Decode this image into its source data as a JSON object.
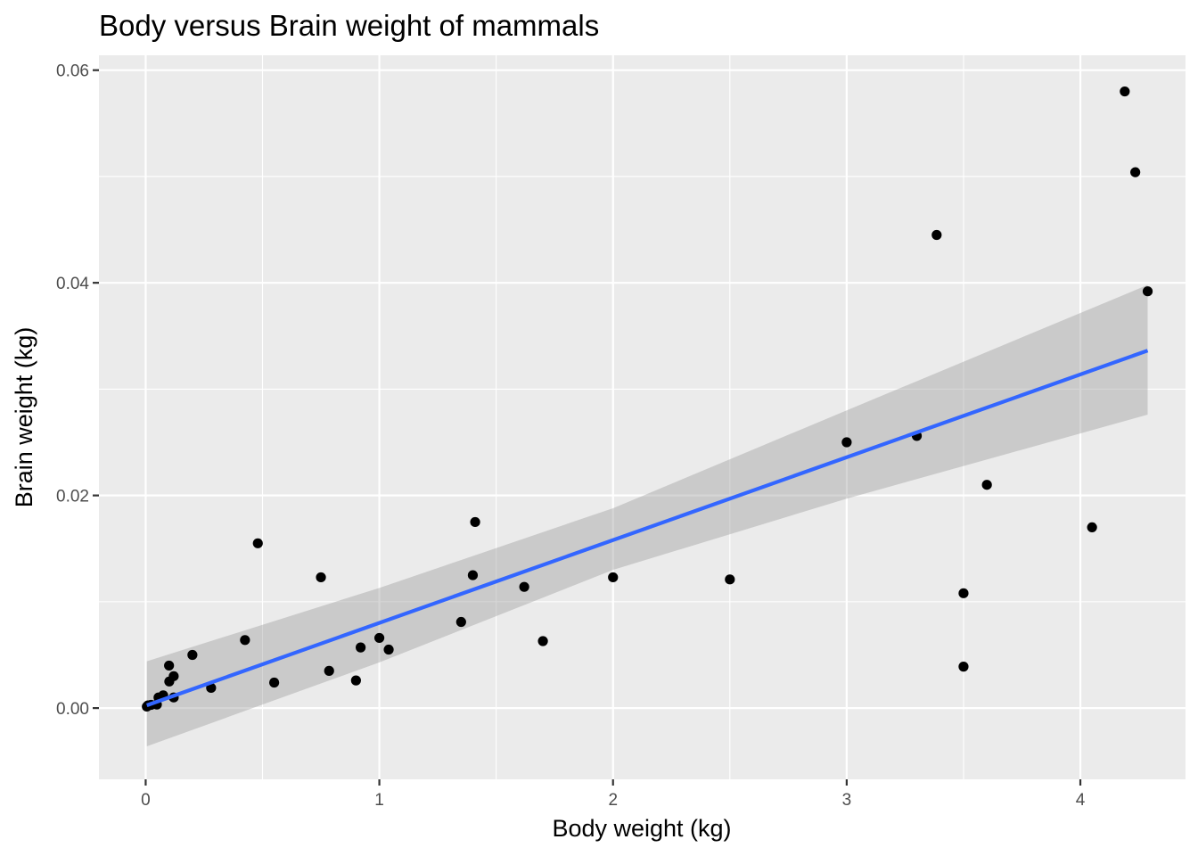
{
  "chart_data": {
    "type": "scatter",
    "title": "Body versus Brain weight of mammals",
    "xlabel": "Body weight (kg)",
    "ylabel": "Brain weight (kg)",
    "xlim": [
      -0.2,
      4.45
    ],
    "ylim": [
      -0.0067,
      0.0614
    ],
    "grid": true,
    "legend": "none",
    "x_ticks": [
      0,
      1,
      2,
      3,
      4
    ],
    "x_tick_labels": [
      "0",
      "1",
      "2",
      "3",
      "4"
    ],
    "y_ticks": [
      0.0,
      0.02,
      0.04,
      0.06
    ],
    "y_tick_labels": [
      "0.00",
      "0.02",
      "0.04",
      "0.06"
    ],
    "points": [
      {
        "x": 0.005,
        "y": 0.00014
      },
      {
        "x": 0.01,
        "y": 0.00025
      },
      {
        "x": 0.023,
        "y": 0.0003
      },
      {
        "x": 0.048,
        "y": 0.00033
      },
      {
        "x": 0.055,
        "y": 0.001
      },
      {
        "x": 0.075,
        "y": 0.0012
      },
      {
        "x": 0.1,
        "y": 0.004
      },
      {
        "x": 0.101,
        "y": 0.0025
      },
      {
        "x": 0.12,
        "y": 0.003
      },
      {
        "x": 0.12,
        "y": 0.001
      },
      {
        "x": 0.2,
        "y": 0.005
      },
      {
        "x": 0.28,
        "y": 0.0019
      },
      {
        "x": 0.425,
        "y": 0.0064
      },
      {
        "x": 0.48,
        "y": 0.0155
      },
      {
        "x": 0.55,
        "y": 0.0024
      },
      {
        "x": 0.75,
        "y": 0.0123
      },
      {
        "x": 0.785,
        "y": 0.0035
      },
      {
        "x": 0.9,
        "y": 0.0026
      },
      {
        "x": 0.92,
        "y": 0.0057
      },
      {
        "x": 1.0,
        "y": 0.0066
      },
      {
        "x": 1.04,
        "y": 0.0055
      },
      {
        "x": 1.35,
        "y": 0.0081
      },
      {
        "x": 1.4,
        "y": 0.0125
      },
      {
        "x": 1.41,
        "y": 0.0175
      },
      {
        "x": 1.62,
        "y": 0.0114
      },
      {
        "x": 1.7,
        "y": 0.0063
      },
      {
        "x": 2.0,
        "y": 0.0123
      },
      {
        "x": 2.5,
        "y": 0.0121
      },
      {
        "x": 3.0,
        "y": 0.025
      },
      {
        "x": 3.3,
        "y": 0.0256
      },
      {
        "x": 3.385,
        "y": 0.0445
      },
      {
        "x": 3.5,
        "y": 0.0108
      },
      {
        "x": 3.5,
        "y": 0.0039
      },
      {
        "x": 3.6,
        "y": 0.021
      },
      {
        "x": 4.05,
        "y": 0.017
      },
      {
        "x": 4.19,
        "y": 0.058
      },
      {
        "x": 4.235,
        "y": 0.0504
      },
      {
        "x": 4.288,
        "y": 0.0392
      }
    ],
    "trend_line": {
      "method": "linear fit",
      "x_range": [
        0.005,
        4.288
      ],
      "intercept": 0.00022,
      "slope": 0.00779,
      "ci_lower": [
        [
          0.005,
          -0.0036
        ],
        [
          1.0,
          0.0043
        ],
        [
          2.0,
          0.013
        ],
        [
          3.0,
          0.0197
        ],
        [
          4.288,
          0.0276
        ]
      ],
      "ci_upper": [
        [
          0.005,
          0.0044
        ],
        [
          1.0,
          0.0113
        ],
        [
          2.0,
          0.0188
        ],
        [
          3.0,
          0.028
        ],
        [
          4.288,
          0.0398
        ]
      ]
    },
    "colors": {
      "panel_background": "#ebebeb",
      "grid_major": "#ffffff",
      "point": "#000000",
      "trend_line": "#3366ff",
      "confidence_band": "#999999"
    }
  }
}
